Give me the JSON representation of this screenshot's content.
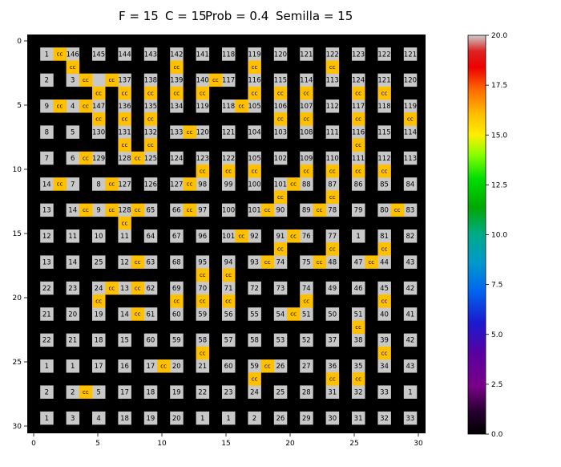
{
  "chart_data": {
    "type": "heatmap",
    "title_parts": [
      "F = 15",
      "C = 15",
      "Prob = 0.4",
      "Semilla = 15"
    ],
    "xlim": [
      0,
      30
    ],
    "ylim": [
      30,
      0
    ],
    "x_ticks": [
      "0",
      "5",
      "10",
      "15",
      "20",
      "25",
      "30"
    ],
    "y_ticks": [
      "0",
      "5",
      "10",
      "15",
      "20",
      "25",
      "30"
    ],
    "colorbar": {
      "min": 0.0,
      "max": 20.0,
      "ticks": [
        "0.0",
        "2.5",
        "5.0",
        "7.5",
        "10.0",
        "12.5",
        "15.0",
        "17.5",
        "20.0"
      ]
    },
    "colors": {
      "wall": "#000000",
      "path": "#c8c8c8",
      "cc": "#ffc000"
    },
    "cell_labels": [
      [
        1,
        1,
        "1"
      ],
      [
        1,
        3,
        "146"
      ],
      [
        1,
        5,
        "145"
      ],
      [
        1,
        7,
        "144"
      ],
      [
        1,
        9,
        "143"
      ],
      [
        1,
        11,
        "142"
      ],
      [
        1,
        13,
        "141"
      ],
      [
        1,
        15,
        "118"
      ],
      [
        1,
        17,
        "119"
      ],
      [
        1,
        19,
        "120"
      ],
      [
        1,
        21,
        "121"
      ],
      [
        1,
        23,
        "122"
      ],
      [
        1,
        25,
        "123"
      ],
      [
        1,
        27,
        "122"
      ],
      [
        1,
        29,
        "121"
      ],
      [
        3,
        1,
        "2"
      ],
      [
        3,
        3,
        "3"
      ],
      [
        3,
        7,
        "137"
      ],
      [
        3,
        9,
        "138"
      ],
      [
        3,
        11,
        "139"
      ],
      [
        3,
        13,
        "140"
      ],
      [
        3,
        15,
        "117"
      ],
      [
        3,
        17,
        "116"
      ],
      [
        3,
        19,
        "115"
      ],
      [
        3,
        21,
        "114"
      ],
      [
        3,
        23,
        "113"
      ],
      [
        3,
        25,
        "124"
      ],
      [
        3,
        27,
        "121"
      ],
      [
        3,
        29,
        "120"
      ],
      [
        5,
        1,
        "9"
      ],
      [
        5,
        3,
        "4"
      ],
      [
        5,
        5,
        "147"
      ],
      [
        5,
        7,
        "136"
      ],
      [
        5,
        9,
        "135"
      ],
      [
        5,
        11,
        "134"
      ],
      [
        5,
        13,
        "119"
      ],
      [
        5,
        15,
        "118"
      ],
      [
        5,
        17,
        "105"
      ],
      [
        5,
        19,
        "106"
      ],
      [
        5,
        21,
        "107"
      ],
      [
        5,
        23,
        "112"
      ],
      [
        5,
        25,
        "117"
      ],
      [
        5,
        27,
        "118"
      ],
      [
        5,
        29,
        "119"
      ],
      [
        7,
        1,
        "8"
      ],
      [
        7,
        3,
        "5"
      ],
      [
        7,
        5,
        "130"
      ],
      [
        7,
        7,
        "131"
      ],
      [
        7,
        9,
        "132"
      ],
      [
        7,
        11,
        "133"
      ],
      [
        7,
        13,
        "120"
      ],
      [
        7,
        15,
        "121"
      ],
      [
        7,
        17,
        "104"
      ],
      [
        7,
        19,
        "103"
      ],
      [
        7,
        21,
        "108"
      ],
      [
        7,
        23,
        "111"
      ],
      [
        7,
        25,
        "116"
      ],
      [
        7,
        27,
        "115"
      ],
      [
        7,
        29,
        "114"
      ],
      [
        9,
        1,
        "7"
      ],
      [
        9,
        3,
        "6"
      ],
      [
        9,
        5,
        "129"
      ],
      [
        9,
        7,
        "128"
      ],
      [
        9,
        9,
        "125"
      ],
      [
        9,
        11,
        "124"
      ],
      [
        9,
        13,
        "123"
      ],
      [
        9,
        15,
        "122"
      ],
      [
        9,
        17,
        "105"
      ],
      [
        9,
        19,
        "102"
      ],
      [
        9,
        21,
        "109"
      ],
      [
        9,
        23,
        "110"
      ],
      [
        9,
        25,
        "111"
      ],
      [
        9,
        27,
        "112"
      ],
      [
        9,
        29,
        "113"
      ],
      [
        11,
        1,
        "14"
      ],
      [
        11,
        3,
        "7"
      ],
      [
        11,
        5,
        "8"
      ],
      [
        11,
        7,
        "127"
      ],
      [
        11,
        9,
        "126"
      ],
      [
        11,
        11,
        "127"
      ],
      [
        11,
        13,
        "98"
      ],
      [
        11,
        15,
        "99"
      ],
      [
        11,
        17,
        "100"
      ],
      [
        11,
        19,
        "101"
      ],
      [
        11,
        21,
        "88"
      ],
      [
        11,
        23,
        "87"
      ],
      [
        11,
        25,
        "86"
      ],
      [
        11,
        27,
        "85"
      ],
      [
        11,
        29,
        "84"
      ],
      [
        13,
        1,
        "13"
      ],
      [
        13,
        3,
        "14"
      ],
      [
        13,
        5,
        "9"
      ],
      [
        13,
        7,
        "128"
      ],
      [
        13,
        9,
        "65"
      ],
      [
        13,
        11,
        "66"
      ],
      [
        13,
        13,
        "97"
      ],
      [
        13,
        15,
        "100"
      ],
      [
        13,
        17,
        "101"
      ],
      [
        13,
        19,
        "90"
      ],
      [
        13,
        21,
        "89"
      ],
      [
        13,
        23,
        "78"
      ],
      [
        13,
        25,
        "79"
      ],
      [
        13,
        27,
        "80"
      ],
      [
        13,
        29,
        "83"
      ],
      [
        15,
        1,
        "12"
      ],
      [
        15,
        3,
        "11"
      ],
      [
        15,
        5,
        "10"
      ],
      [
        15,
        7,
        "11"
      ],
      [
        15,
        9,
        "64"
      ],
      [
        15,
        11,
        "67"
      ],
      [
        15,
        13,
        "96"
      ],
      [
        15,
        15,
        "101"
      ],
      [
        15,
        17,
        "92"
      ],
      [
        15,
        19,
        "91"
      ],
      [
        15,
        21,
        "76"
      ],
      [
        15,
        23,
        "77"
      ],
      [
        15,
        25,
        "1"
      ],
      [
        15,
        27,
        "81"
      ],
      [
        15,
        29,
        "82"
      ],
      [
        17,
        1,
        "13"
      ],
      [
        17,
        3,
        "14"
      ],
      [
        17,
        5,
        "25"
      ],
      [
        17,
        7,
        "12"
      ],
      [
        17,
        9,
        "63"
      ],
      [
        17,
        11,
        "68"
      ],
      [
        17,
        13,
        "95"
      ],
      [
        17,
        15,
        "94"
      ],
      [
        17,
        17,
        "93"
      ],
      [
        17,
        19,
        "74"
      ],
      [
        17,
        21,
        "75"
      ],
      [
        17,
        23,
        "48"
      ],
      [
        17,
        25,
        "47"
      ],
      [
        17,
        27,
        "44"
      ],
      [
        17,
        29,
        "43"
      ],
      [
        19,
        1,
        "22"
      ],
      [
        19,
        3,
        "23"
      ],
      [
        19,
        5,
        "24"
      ],
      [
        19,
        7,
        "13"
      ],
      [
        19,
        9,
        "62"
      ],
      [
        19,
        11,
        "69"
      ],
      [
        19,
        13,
        "70"
      ],
      [
        19,
        15,
        "71"
      ],
      [
        19,
        17,
        "72"
      ],
      [
        19,
        19,
        "73"
      ],
      [
        19,
        21,
        "74"
      ],
      [
        19,
        23,
        "49"
      ],
      [
        19,
        25,
        "46"
      ],
      [
        19,
        27,
        "45"
      ],
      [
        19,
        29,
        "42"
      ],
      [
        21,
        1,
        "21"
      ],
      [
        21,
        3,
        "20"
      ],
      [
        21,
        5,
        "19"
      ],
      [
        21,
        7,
        "14"
      ],
      [
        21,
        9,
        "61"
      ],
      [
        21,
        11,
        "60"
      ],
      [
        21,
        13,
        "59"
      ],
      [
        21,
        15,
        "56"
      ],
      [
        21,
        17,
        "55"
      ],
      [
        21,
        19,
        "54"
      ],
      [
        21,
        21,
        "51"
      ],
      [
        21,
        23,
        "50"
      ],
      [
        21,
        25,
        "51"
      ],
      [
        21,
        27,
        "40"
      ],
      [
        21,
        29,
        "41"
      ],
      [
        23,
        1,
        "22"
      ],
      [
        23,
        3,
        "21"
      ],
      [
        23,
        5,
        "18"
      ],
      [
        23,
        7,
        "15"
      ],
      [
        23,
        9,
        "60"
      ],
      [
        23,
        11,
        "59"
      ],
      [
        23,
        13,
        "58"
      ],
      [
        23,
        15,
        "57"
      ],
      [
        23,
        17,
        "58"
      ],
      [
        23,
        19,
        "53"
      ],
      [
        23,
        21,
        "52"
      ],
      [
        23,
        23,
        "37"
      ],
      [
        23,
        25,
        "38"
      ],
      [
        23,
        27,
        "39"
      ],
      [
        23,
        29,
        "42"
      ],
      [
        25,
        1,
        "1"
      ],
      [
        25,
        3,
        "1"
      ],
      [
        25,
        5,
        "17"
      ],
      [
        25,
        7,
        "16"
      ],
      [
        25,
        9,
        "17"
      ],
      [
        25,
        11,
        "20"
      ],
      [
        25,
        13,
        "21"
      ],
      [
        25,
        15,
        "60"
      ],
      [
        25,
        17,
        "59"
      ],
      [
        25,
        19,
        "26"
      ],
      [
        25,
        21,
        "27"
      ],
      [
        25,
        23,
        "36"
      ],
      [
        25,
        25,
        "35"
      ],
      [
        25,
        27,
        "34"
      ],
      [
        25,
        29,
        "43"
      ],
      [
        27,
        1,
        "2"
      ],
      [
        27,
        3,
        "2"
      ],
      [
        27,
        5,
        "5"
      ],
      [
        27,
        7,
        "17"
      ],
      [
        27,
        9,
        "18"
      ],
      [
        27,
        11,
        "19"
      ],
      [
        27,
        13,
        "22"
      ],
      [
        27,
        15,
        "23"
      ],
      [
        27,
        17,
        "24"
      ],
      [
        27,
        19,
        "25"
      ],
      [
        27,
        21,
        "28"
      ],
      [
        27,
        23,
        "31"
      ],
      [
        27,
        25,
        "32"
      ],
      [
        27,
        27,
        "33"
      ],
      [
        27,
        29,
        "1"
      ],
      [
        29,
        1,
        "1"
      ],
      [
        29,
        3,
        "3"
      ],
      [
        29,
        5,
        "4"
      ],
      [
        29,
        7,
        "18"
      ],
      [
        29,
        9,
        "19"
      ],
      [
        29,
        11,
        "20"
      ],
      [
        29,
        13,
        "1"
      ],
      [
        29,
        15,
        "1"
      ],
      [
        29,
        17,
        "2"
      ],
      [
        29,
        19,
        "26"
      ],
      [
        29,
        21,
        "29"
      ],
      [
        29,
        23,
        "30"
      ],
      [
        29,
        25,
        "31"
      ],
      [
        29,
        27,
        "32"
      ],
      [
        29,
        29,
        "33"
      ]
    ],
    "cc_label": "cc",
    "cc_cells": [
      [
        1,
        2
      ],
      [
        2,
        3
      ],
      [
        2,
        11
      ],
      [
        2,
        17
      ],
      [
        2,
        23
      ],
      [
        3,
        4
      ],
      [
        3,
        6
      ],
      [
        3,
        14
      ],
      [
        4,
        5
      ],
      [
        4,
        7
      ],
      [
        4,
        9
      ],
      [
        4,
        11
      ],
      [
        4,
        13
      ],
      [
        4,
        17
      ],
      [
        4,
        19
      ],
      [
        4,
        21
      ],
      [
        4,
        25
      ],
      [
        4,
        27
      ],
      [
        5,
        2
      ],
      [
        5,
        4
      ],
      [
        5,
        16
      ],
      [
        6,
        5
      ],
      [
        6,
        7
      ],
      [
        6,
        9
      ],
      [
        6,
        19
      ],
      [
        6,
        21
      ],
      [
        6,
        25
      ],
      [
        6,
        29
      ],
      [
        7,
        12
      ],
      [
        8,
        7
      ],
      [
        8,
        9
      ],
      [
        8,
        25
      ],
      [
        9,
        4
      ],
      [
        9,
        8
      ],
      [
        10,
        13
      ],
      [
        10,
        15
      ],
      [
        10,
        17
      ],
      [
        10,
        21
      ],
      [
        10,
        23
      ],
      [
        10,
        25
      ],
      [
        10,
        27
      ],
      [
        11,
        2
      ],
      [
        11,
        6
      ],
      [
        11,
        12
      ],
      [
        11,
        20
      ],
      [
        12,
        19
      ],
      [
        12,
        23
      ],
      [
        13,
        4
      ],
      [
        13,
        6
      ],
      [
        13,
        8
      ],
      [
        13,
        12
      ],
      [
        13,
        18
      ],
      [
        13,
        22
      ],
      [
        13,
        28
      ],
      [
        14,
        7
      ],
      [
        15,
        16
      ],
      [
        15,
        20
      ],
      [
        16,
        19
      ],
      [
        16,
        23
      ],
      [
        16,
        27
      ],
      [
        17,
        8
      ],
      [
        17,
        18
      ],
      [
        17,
        22
      ],
      [
        17,
        26
      ],
      [
        18,
        13
      ],
      [
        18,
        15
      ],
      [
        19,
        6
      ],
      [
        19,
        8
      ],
      [
        20,
        5
      ],
      [
        20,
        11
      ],
      [
        20,
        13
      ],
      [
        20,
        15
      ],
      [
        20,
        21
      ],
      [
        20,
        27
      ],
      [
        21,
        8
      ],
      [
        21,
        20
      ],
      [
        22,
        25
      ],
      [
        24,
        13
      ],
      [
        24,
        27
      ],
      [
        25,
        10
      ],
      [
        25,
        18
      ],
      [
        26,
        17
      ],
      [
        26,
        23
      ],
      [
        26,
        25
      ],
      [
        27,
        4
      ]
    ]
  }
}
